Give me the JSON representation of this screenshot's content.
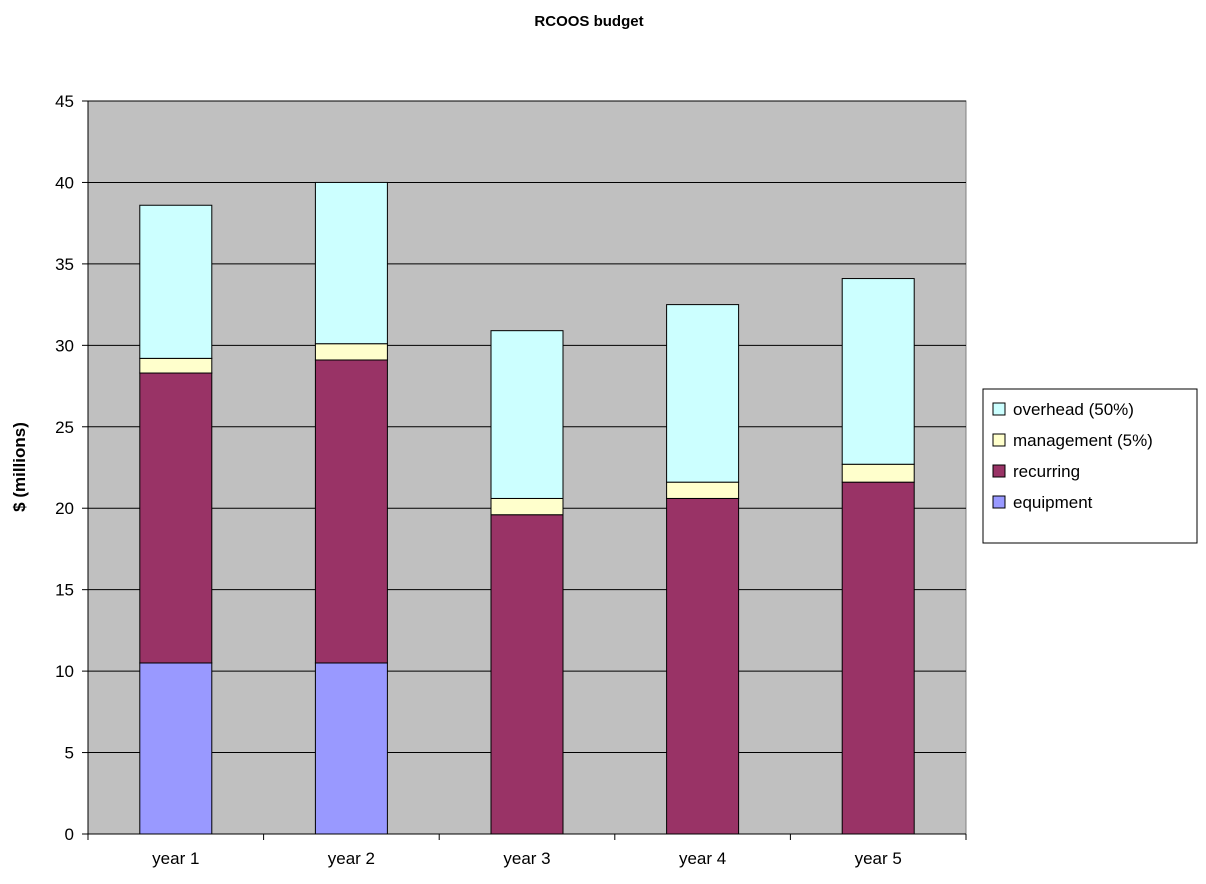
{
  "chart_data": {
    "type": "bar",
    "stacked": true,
    "title": "RCOOS budget",
    "xlabel": "",
    "ylabel": "$ (millions)",
    "ylim": [
      0,
      45
    ],
    "yticks": [
      0,
      5,
      10,
      15,
      20,
      25,
      30,
      35,
      40,
      45
    ],
    "grid": true,
    "legend_position": "right",
    "plot_background": "#c0c0c0",
    "categories": [
      "year 1",
      "year 2",
      "year 3",
      "year 4",
      "year 5"
    ],
    "series": [
      {
        "name": "equipment",
        "color": "#9999ff",
        "values": [
          10.5,
          10.5,
          0,
          0,
          0
        ]
      },
      {
        "name": "recurring",
        "color": "#993366",
        "values": [
          17.8,
          18.6,
          19.6,
          20.6,
          21.6
        ]
      },
      {
        "name": "management (5%)",
        "color": "#ffffcc",
        "values": [
          0.9,
          1.0,
          1.0,
          1.0,
          1.1
        ]
      },
      {
        "name": "overhead (50%)",
        "color": "#ccffff",
        "values": [
          9.4,
          9.9,
          10.3,
          10.9,
          11.4
        ]
      }
    ]
  }
}
